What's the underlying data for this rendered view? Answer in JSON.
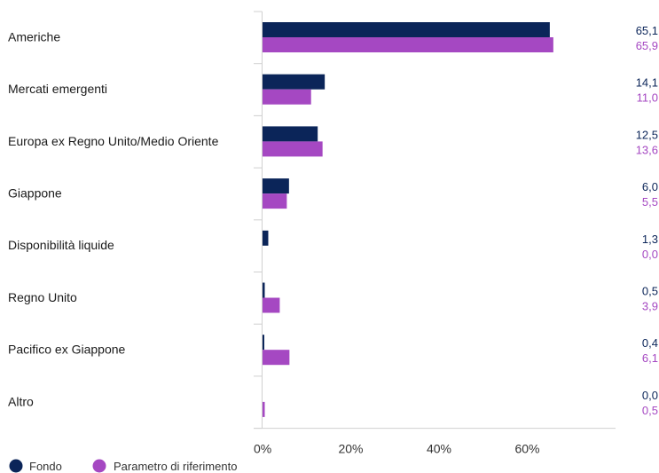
{
  "chart_data": {
    "type": "bar",
    "orientation": "horizontal",
    "categories": [
      "Americhe",
      "Mercati emergenti",
      "Europa ex Regno Unito/Medio Oriente",
      "Giappone",
      "Disponibilità liquide",
      "Regno Unito",
      "Pacifico ex Giappone",
      "Altro"
    ],
    "series": [
      {
        "name": "Fondo",
        "color": "#0b2559",
        "values": [
          65.1,
          14.1,
          12.5,
          6.0,
          1.3,
          0.5,
          0.4,
          0.0
        ],
        "labels": [
          "65,1",
          "14,1",
          "12,5",
          "6,0",
          "1,3",
          "0,5",
          "0,4",
          "0,0"
        ]
      },
      {
        "name": "Parametro di riferimento",
        "color": "#a548c2",
        "values": [
          65.9,
          11.0,
          13.6,
          5.5,
          0.0,
          3.9,
          6.1,
          0.5
        ],
        "labels": [
          "65,9",
          "11,0",
          "13,6",
          "5,5",
          "0,0",
          "3,9",
          "6,1",
          "0,5"
        ]
      }
    ],
    "xticks": [
      0,
      20,
      40,
      60
    ],
    "xtick_labels": [
      "0%",
      "20%",
      "40%",
      "60%"
    ],
    "xlim": [
      0,
      80
    ],
    "grid": true,
    "legend_position": "bottom-left"
  }
}
